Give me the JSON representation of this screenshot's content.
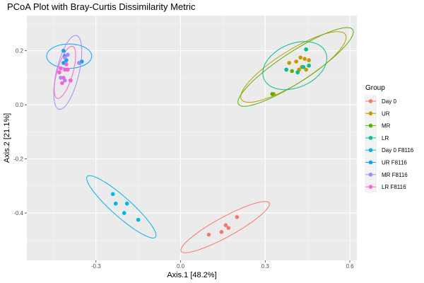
{
  "chart_data": {
    "type": "scatter",
    "title": "PCoA Plot with Bray-Curtis Dissimilarity Metric",
    "xlabel": "Axis.1   [48.2%]",
    "ylabel": "Axis.2   [21.1%]",
    "xlim": [
      -0.545,
      0.625
    ],
    "ylim": [
      -0.575,
      0.33
    ],
    "x_ticks": [
      {
        "value": -0.3,
        "label": "-0.3"
      },
      {
        "value": 0.0,
        "label": "0.0"
      },
      {
        "value": 0.3,
        "label": "0.3"
      },
      {
        "value": 0.6,
        "label": "0.6"
      }
    ],
    "y_ticks": [
      {
        "value": 0.2,
        "label": "0.2"
      },
      {
        "value": 0.0,
        "label": "0.0"
      },
      {
        "value": -0.2,
        "label": "-0.2"
      },
      {
        "value": -0.4,
        "label": "-0.4"
      }
    ],
    "grid": true,
    "legend": {
      "title": "Group",
      "position": "right"
    },
    "series": [
      {
        "name": "Day 0",
        "color": "#F8766D",
        "points": [
          [
            0.1,
            -0.48
          ],
          [
            0.145,
            -0.47
          ],
          [
            0.16,
            -0.445
          ],
          [
            0.17,
            -0.455
          ],
          [
            0.2,
            -0.415
          ]
        ],
        "ellipse": {
          "cx": 0.158,
          "cy": -0.452,
          "rx": 0.18,
          "ry": 0.036,
          "angle": 0.52
        }
      },
      {
        "name": "UR",
        "color": "#C49A00",
        "points": [
          [
            0.385,
            0.155
          ],
          [
            0.41,
            0.16
          ],
          [
            0.425,
            0.175
          ],
          [
            0.44,
            0.17
          ],
          [
            0.455,
            0.165
          ],
          [
            0.42,
            0.13
          ],
          [
            0.43,
            0.14
          ],
          [
            0.445,
            0.13
          ],
          [
            0.33,
            0.04
          ]
        ],
        "ellipse": {
          "cx": 0.4,
          "cy": 0.14,
          "rx": 0.22,
          "ry": 0.06,
          "angle": 0.58
        }
      },
      {
        "name": "MR",
        "color": "#53B400",
        "points": [
          [
            0.325,
            0.04
          ],
          [
            0.375,
            0.13
          ],
          [
            0.395,
            0.125
          ],
          [
            0.415,
            0.12
          ],
          [
            0.435,
            0.14
          ],
          [
            0.455,
            0.145
          ],
          [
            0.445,
            0.205
          ]
        ],
        "ellipse": {
          "cx": 0.408,
          "cy": 0.14,
          "rx": 0.245,
          "ry": 0.055,
          "angle": 0.6
        }
      },
      {
        "name": "LR",
        "color": "#00C094",
        "points": [
          [
            0.375,
            0.13
          ],
          [
            0.415,
            0.12
          ],
          [
            0.435,
            0.14
          ],
          [
            0.455,
            0.145
          ],
          [
            0.445,
            0.205
          ]
        ],
        "ellipse": {
          "cx": 0.405,
          "cy": 0.145,
          "rx": 0.12,
          "ry": 0.08,
          "angle": 0.45
        }
      },
      {
        "name": "Day 0 F8116",
        "color": "#00B6EB",
        "points": [
          [
            -0.24,
            -0.33
          ],
          [
            -0.23,
            -0.365
          ],
          [
            -0.2,
            -0.4
          ],
          [
            -0.19,
            -0.365
          ],
          [
            -0.15,
            -0.425
          ]
        ],
        "ellipse": {
          "cx": -0.21,
          "cy": -0.377,
          "rx": 0.165,
          "ry": 0.035,
          "angle": -0.75
        }
      },
      {
        "name": "UR  F8116",
        "color": "#06A4FF",
        "points": [
          [
            -0.415,
            0.2
          ],
          [
            -0.41,
            0.18
          ],
          [
            -0.405,
            0.165
          ],
          [
            -0.415,
            0.155
          ],
          [
            -0.35,
            0.16
          ],
          [
            -0.36,
            0.155
          ]
        ],
        "ellipse": {
          "cx": -0.395,
          "cy": 0.18,
          "rx": 0.08,
          "ry": 0.045,
          "angle": 0.0
        }
      },
      {
        "name": "MR  F8116",
        "color": "#A58AFF",
        "points": [
          [
            -0.4,
            0.185
          ],
          [
            -0.41,
            0.175
          ],
          [
            -0.36,
            0.155
          ],
          [
            -0.43,
            0.12
          ],
          [
            -0.425,
            0.1
          ],
          [
            -0.41,
            0.09
          ],
          [
            -0.39,
            0.09
          ]
        ],
        "ellipse": {
          "cx": -0.4,
          "cy": 0.12,
          "rx": 0.14,
          "ry": 0.04,
          "angle": 1.35
        }
      },
      {
        "name": "LR  F8116",
        "color": "#FB61D7",
        "points": [
          [
            -0.405,
            0.15
          ],
          [
            -0.41,
            0.13
          ],
          [
            -0.425,
            0.135
          ],
          [
            -0.43,
            0.12
          ],
          [
            -0.415,
            0.1
          ],
          [
            -0.4,
            0.13
          ],
          [
            -0.39,
            0.09
          ],
          [
            -0.42,
            0.08
          ]
        ],
        "ellipse": {
          "cx": -0.41,
          "cy": 0.12,
          "rx": 0.1,
          "ry": 0.028,
          "angle": 1.3
        }
      }
    ]
  }
}
